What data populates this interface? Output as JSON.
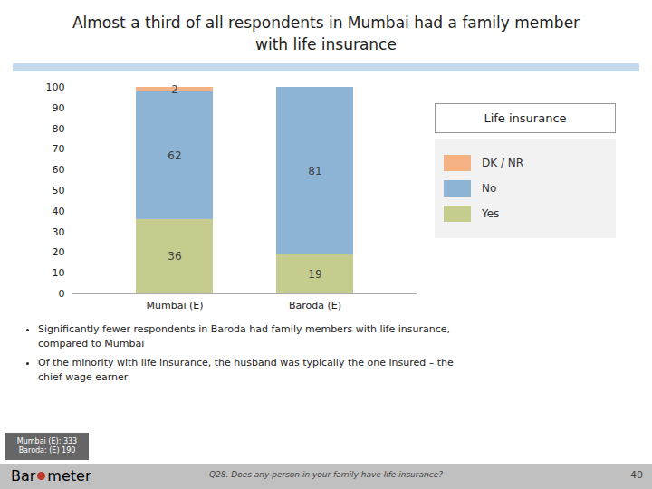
{
  "chart_data": {
    "type": "bar",
    "stacked": true,
    "title": "Almost a third of all respondents in Mumbai had a family member\nwith life insurance",
    "categories": [
      "Mumbai (E)",
      "Baroda (E)"
    ],
    "series": [
      {
        "name": "Yes",
        "color": "#c5cc8e",
        "values": [
          36,
          19
        ]
      },
      {
        "name": "No",
        "color": "#8db4d4",
        "values": [
          62,
          81
        ]
      },
      {
        "name": "DK / NR",
        "color": "#f4b183",
        "values": [
          2,
          0
        ]
      }
    ],
    "ylim": [
      0,
      100
    ],
    "yticks": [
      0,
      10,
      20,
      30,
      40,
      50,
      60,
      70,
      80,
      90,
      100
    ],
    "grid": false,
    "legend": "right",
    "legend_title": "Life insurance",
    "data_labels": true,
    "annotations": [
      "Significantly fewer respondents in Baroda had family members with life insurance,\ncompared to Mumbai",
      "Of the minority with life insurance, the husband was typically the one insured – the\nchief wage earner"
    ],
    "note": "Mumbai (E): 333\nBaroda: (E) 190",
    "source": "Q28. Does any person in your family have life insurance?",
    "page": "40",
    "logo": [
      "Bar",
      "meter"
    ]
  }
}
